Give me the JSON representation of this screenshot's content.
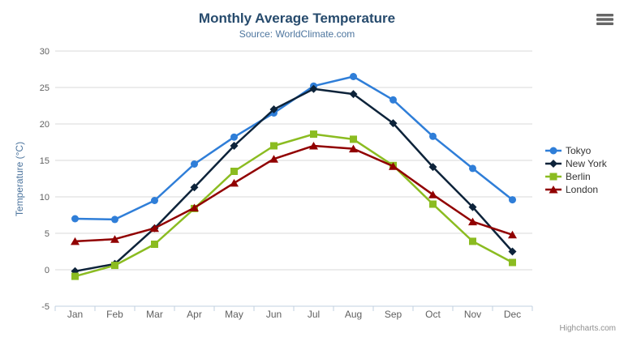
{
  "chart_data": {
    "type": "line",
    "title": "Monthly Average Temperature",
    "subtitle": "Source: WorldClimate.com",
    "categories": [
      "Jan",
      "Feb",
      "Mar",
      "Apr",
      "May",
      "Jun",
      "Jul",
      "Aug",
      "Sep",
      "Oct",
      "Nov",
      "Dec"
    ],
    "series": [
      {
        "name": "Tokyo",
        "color": "#2f7ed8",
        "marker": "circle",
        "values": [
          7.0,
          6.9,
          9.5,
          14.5,
          18.2,
          21.5,
          25.2,
          26.5,
          23.3,
          18.3,
          13.9,
          9.6
        ]
      },
      {
        "name": "New York",
        "color": "#0d233a",
        "marker": "diamond",
        "values": [
          -0.2,
          0.8,
          5.7,
          11.3,
          17.0,
          22.0,
          24.8,
          24.1,
          20.1,
          14.1,
          8.6,
          2.5
        ]
      },
      {
        "name": "Berlin",
        "color": "#8bbc21",
        "marker": "square",
        "values": [
          -0.9,
          0.6,
          3.5,
          8.4,
          13.5,
          17.0,
          18.6,
          17.9,
          14.3,
          9.0,
          3.9,
          1.0
        ]
      },
      {
        "name": "London",
        "color": "#910000",
        "marker": "triangle",
        "values": [
          3.9,
          4.2,
          5.7,
          8.5,
          11.9,
          15.2,
          17.0,
          16.6,
          14.2,
          10.3,
          6.6,
          4.8
        ]
      }
    ],
    "xlabel": "",
    "ylabel": "Temperature (°C)",
    "ylim": [
      -5,
      30
    ],
    "ytick_interval": 5,
    "yticks": [
      -5,
      0,
      5,
      10,
      15,
      20,
      25,
      30
    ],
    "grid": true,
    "legend_position": "right"
  },
  "theme": {
    "title_color": "#274b6d",
    "subtitle_color": "#4d759e",
    "axis_label_color": "#606060",
    "axis_title_color": "#4d759e",
    "grid_color": "#d8d8d8",
    "axis_line_color": "#c0d0e0",
    "legend_text_color": "#333333",
    "credits_color": "#909090",
    "menu_icon_color": "#666666",
    "background": "#ffffff"
  },
  "credits": {
    "label": "Highcharts.com"
  }
}
